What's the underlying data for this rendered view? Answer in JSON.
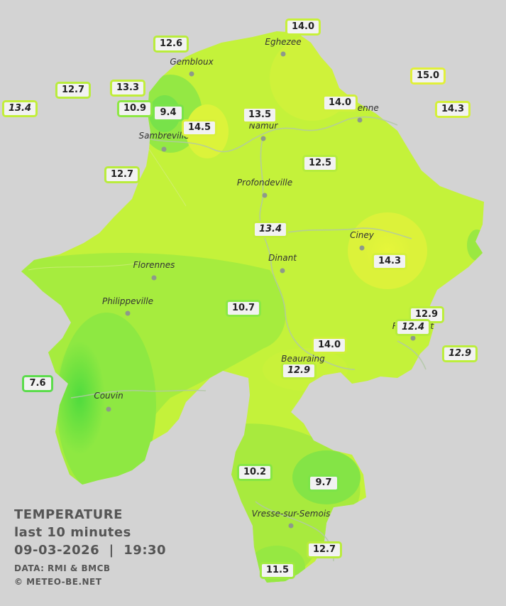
{
  "legend": {
    "title": "TEMPERATURE",
    "subtitle": "last 10 minutes",
    "datetime": "09-03-2026  |  19:30",
    "source": "DATA: RMI & BMCB",
    "credit": "© METEO-BE.NET"
  },
  "cities": [
    {
      "name": "Eghezee"
    },
    {
      "name": "Gembloux"
    },
    {
      "name": "Andenne"
    },
    {
      "name": "Namur"
    },
    {
      "name": "Sambreville"
    },
    {
      "name": "Profondeville"
    },
    {
      "name": "Ciney"
    },
    {
      "name": "Dinant"
    },
    {
      "name": "Florennes"
    },
    {
      "name": "Philippeville"
    },
    {
      "name": "Rochefort"
    },
    {
      "name": "Beauraing"
    },
    {
      "name": "Couvin"
    },
    {
      "name": "Vresse-sur-Semois"
    }
  ],
  "temperatures": [
    {
      "value": "14.0",
      "color": "#c7f03a",
      "italic": false
    },
    {
      "value": "12.6",
      "color": "#b9ec3c",
      "italic": false
    },
    {
      "value": "15.0",
      "color": "#e1f03a",
      "italic": false
    },
    {
      "value": "12.7",
      "color": "#b9ec3c",
      "italic": false
    },
    {
      "value": "13.3",
      "color": "#c0ee3a",
      "italic": false
    },
    {
      "value": "13.4",
      "color": "#c2ee3a",
      "italic": true
    },
    {
      "value": "10.9",
      "color": "#8ee844",
      "italic": false
    },
    {
      "value": "9.4",
      "color": "#79e34a",
      "italic": false
    },
    {
      "value": "14.0",
      "color": "#cff03a",
      "italic": false
    },
    {
      "value": "14.3",
      "color": "#d4f03a",
      "italic": false
    },
    {
      "value": "13.5",
      "color": "#c7f03a",
      "italic": false
    },
    {
      "value": "14.5",
      "color": "#d9f03a",
      "italic": false
    },
    {
      "value": "12.5",
      "color": "#b5ec3c",
      "italic": false
    },
    {
      "value": "12.7",
      "color": "#b9ec3c",
      "italic": false
    },
    {
      "value": "13.4",
      "color": "#c2ee3a",
      "italic": true
    },
    {
      "value": "14.3",
      "color": "#d4f03a",
      "italic": false
    },
    {
      "value": "10.7",
      "color": "#8ae844",
      "italic": false
    },
    {
      "value": "12.9",
      "color": "#bcee3c",
      "italic": false
    },
    {
      "value": "12.4",
      "color": "#b5ec3c",
      "italic": true
    },
    {
      "value": "12.9",
      "color": "#bcee3c",
      "italic": true
    },
    {
      "value": "14.0",
      "color": "#cff03a",
      "italic": false
    },
    {
      "value": "12.9",
      "color": "#bcee3c",
      "italic": true
    },
    {
      "value": "7.6",
      "color": "#5cdc4c",
      "italic": false
    },
    {
      "value": "10.2",
      "color": "#86e644",
      "italic": false
    },
    {
      "value": "9.7",
      "color": "#7ce448",
      "italic": false
    },
    {
      "value": "12.7",
      "color": "#b9ec3c",
      "italic": false
    },
    {
      "value": "11.5",
      "color": "#a0ea40",
      "italic": false
    }
  ],
  "colors": {
    "background": "#d3d3d3",
    "warm": "#d7f53a",
    "mid": "#b6ee3c",
    "cool": "#86e644",
    "cold": "#56dc4a",
    "river": "#b8c8b0"
  }
}
